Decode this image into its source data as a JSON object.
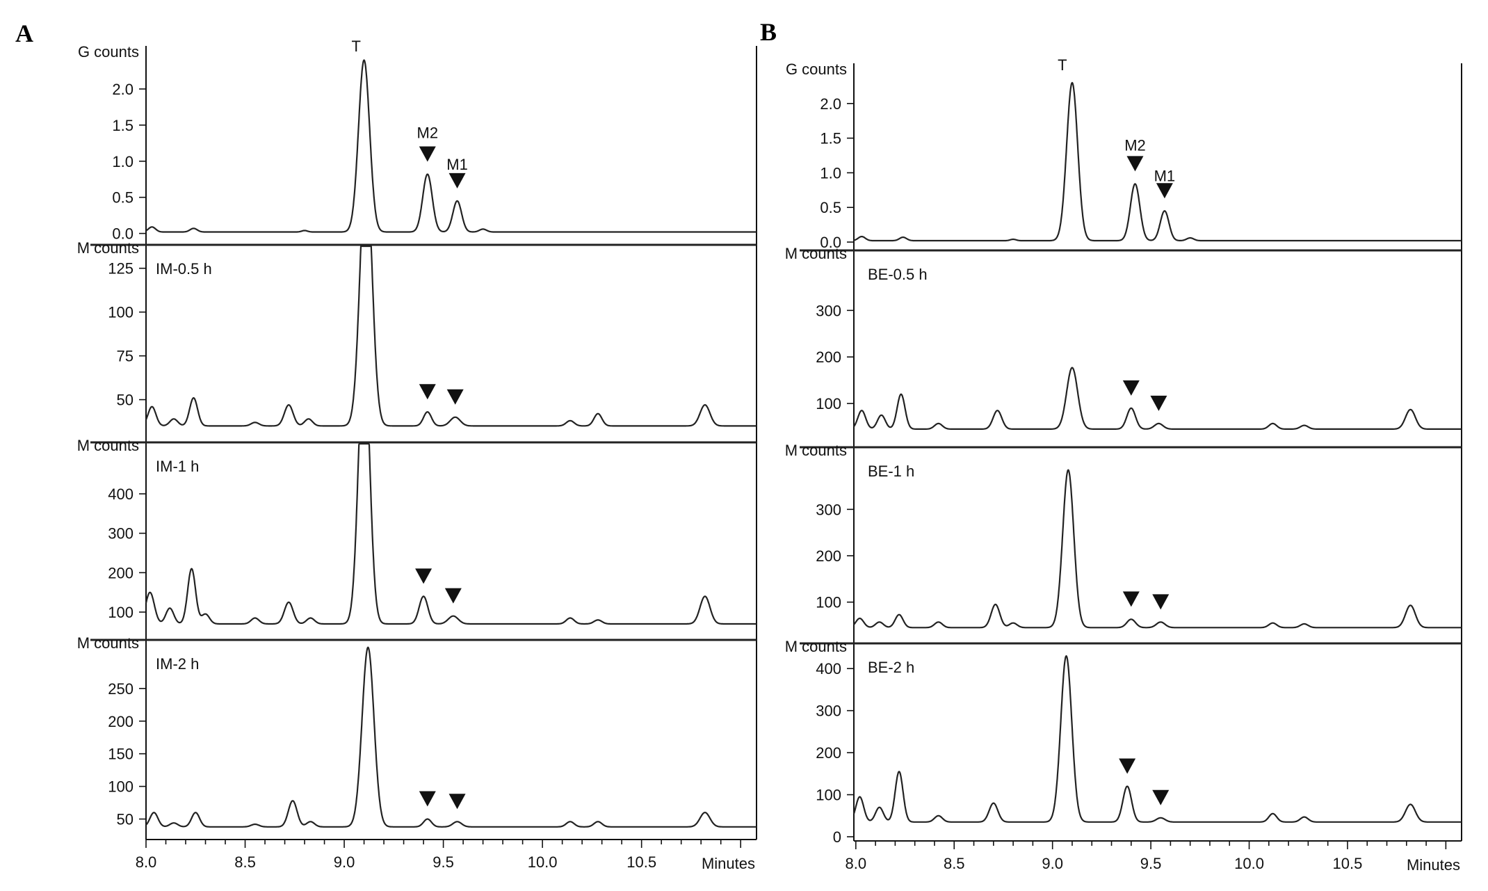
{
  "chart_data": [
    {
      "panel": "A",
      "type": "line",
      "xlabel": "Minutes",
      "xlim": [
        8.0,
        11.08
      ],
      "xticks": [
        8.0,
        8.5,
        9.0,
        9.5,
        10.0,
        10.5
      ],
      "xtick_labels": [
        "8.0",
        "8.5",
        "9.0",
        "9.5",
        "10.0",
        "10.5"
      ],
      "subplots": [
        {
          "ylabel": "G counts",
          "label": "",
          "ylim": [
            -0.1,
            2.5
          ],
          "yticks": [
            0.0,
            0.5,
            1.0,
            1.5,
            2.0
          ],
          "ytick_labels": [
            "0.0",
            "0.5",
            "1.0",
            "1.5",
            "2.0"
          ],
          "baseline": 0.02,
          "peaks": [
            [
              8.03,
              0.07,
              0.018
            ],
            [
              8.24,
              0.05,
              0.018
            ],
            [
              8.8,
              0.02,
              0.015
            ],
            [
              9.1,
              2.38,
              0.028
            ],
            [
              9.42,
              0.8,
              0.024
            ],
            [
              9.57,
              0.43,
              0.022
            ],
            [
              9.7,
              0.04,
              0.018
            ]
          ],
          "markers": [
            9.42,
            9.57
          ],
          "annotations": [
            {
              "text": "T",
              "x": 9.06,
              "y": 2.52
            },
            {
              "text": "M2",
              "x": 9.42,
              "y": 1.32
            },
            {
              "text": "M1",
              "x": 9.57,
              "y": 0.88
            }
          ]
        },
        {
          "ylabel": "M counts",
          "label": "IM-0.5 h",
          "ylim": [
            28,
            136
          ],
          "yticks": [
            50,
            75,
            100,
            125
          ],
          "ytick_labels": [
            "50",
            "75",
            "100",
            "125"
          ],
          "baseline": 35,
          "peaks": [
            [
              8.03,
              11,
              0.02
            ],
            [
              8.14,
              4,
              0.02
            ],
            [
              8.24,
              16,
              0.02
            ],
            [
              8.55,
              2,
              0.02
            ],
            [
              8.72,
              12,
              0.022
            ],
            [
              8.82,
              4,
              0.02
            ],
            [
              9.11,
              150,
              0.03
            ],
            [
              9.42,
              8,
              0.02
            ],
            [
              9.56,
              5,
              0.025
            ],
            [
              10.14,
              3,
              0.02
            ],
            [
              10.28,
              7,
              0.02
            ],
            [
              10.82,
              12,
              0.025
            ]
          ],
          "markers": [
            9.42,
            9.56
          ]
        },
        {
          "ylabel": "M counts",
          "label": "IM-1 h",
          "ylim": [
            40,
            520
          ],
          "yticks": [
            100,
            200,
            300,
            400
          ],
          "ytick_labels": [
            "100",
            "200",
            "300",
            "400"
          ],
          "baseline": 70,
          "peaks": [
            [
              8.02,
              80,
              0.022
            ],
            [
              8.12,
              40,
              0.02
            ],
            [
              8.23,
              140,
              0.02
            ],
            [
              8.3,
              25,
              0.02
            ],
            [
              8.55,
              15,
              0.02
            ],
            [
              8.72,
              55,
              0.022
            ],
            [
              8.83,
              15,
              0.02
            ],
            [
              9.1,
              700,
              0.028
            ],
            [
              9.4,
              70,
              0.022
            ],
            [
              9.55,
              20,
              0.025
            ],
            [
              10.14,
              15,
              0.02
            ],
            [
              10.28,
              10,
              0.02
            ],
            [
              10.82,
              70,
              0.025
            ]
          ],
          "markers": [
            9.4,
            9.55
          ]
        },
        {
          "ylabel": "M counts",
          "label": "IM-2 h",
          "ylim": [
            25,
            318
          ],
          "yticks": [
            50,
            100,
            150,
            200,
            250
          ],
          "ytick_labels": [
            "50",
            "100",
            "150",
            "200",
            "250"
          ],
          "baseline": 38,
          "peaks": [
            [
              8.04,
              22,
              0.02
            ],
            [
              8.14,
              6,
              0.02
            ],
            [
              8.25,
              22,
              0.02
            ],
            [
              8.55,
              4,
              0.02
            ],
            [
              8.74,
              40,
              0.022
            ],
            [
              8.83,
              8,
              0.02
            ],
            [
              9.12,
              275,
              0.03
            ],
            [
              9.42,
              12,
              0.02
            ],
            [
              9.57,
              8,
              0.022
            ],
            [
              10.14,
              8,
              0.02
            ],
            [
              10.28,
              8,
              0.02
            ],
            [
              10.82,
              22,
              0.025
            ]
          ],
          "markers": [
            9.42,
            9.57
          ]
        }
      ]
    },
    {
      "panel": "B",
      "type": "line",
      "xlabel": "Minutes",
      "xlim": [
        7.99,
        11.08
      ],
      "xticks": [
        8.0,
        8.5,
        9.0,
        9.5,
        10.0,
        10.5
      ],
      "xtick_labels": [
        "8.0",
        "8.5",
        "9.0",
        "9.5",
        "10.0",
        "10.5"
      ],
      "subplots": [
        {
          "ylabel": "G counts",
          "label": "",
          "ylim": [
            -0.06,
            2.48
          ],
          "yticks": [
            0.0,
            0.5,
            1.0,
            1.5,
            2.0
          ],
          "ytick_labels": [
            "0.0",
            "0.5",
            "1.0",
            "1.5",
            "2.0"
          ],
          "baseline": 0.02,
          "peaks": [
            [
              8.03,
              0.06,
              0.018
            ],
            [
              8.24,
              0.05,
              0.018
            ],
            [
              8.8,
              0.02,
              0.015
            ],
            [
              9.1,
              2.28,
              0.028
            ],
            [
              9.42,
              0.82,
              0.024
            ],
            [
              9.57,
              0.43,
              0.022
            ],
            [
              9.7,
              0.04,
              0.018
            ]
          ],
          "markers": [
            9.42,
            9.57
          ],
          "annotations": [
            {
              "text": "T",
              "x": 9.05,
              "y": 2.48
            },
            {
              "text": "M2",
              "x": 9.42,
              "y": 1.32
            },
            {
              "text": "M1",
              "x": 9.57,
              "y": 0.88
            }
          ]
        },
        {
          "ylabel": "M counts",
          "label": "BE-0.5 h",
          "ylim": [
            15,
            420
          ],
          "yticks": [
            100,
            200,
            300
          ],
          "ytick_labels": [
            "100",
            "200",
            "300"
          ],
          "baseline": 45,
          "peaks": [
            [
              8.03,
              40,
              0.02
            ],
            [
              8.13,
              30,
              0.02
            ],
            [
              8.23,
              75,
              0.02
            ],
            [
              8.42,
              12,
              0.02
            ],
            [
              8.72,
              40,
              0.022
            ],
            [
              9.1,
              132,
              0.028
            ],
            [
              9.4,
              45,
              0.022
            ],
            [
              9.54,
              12,
              0.022
            ],
            [
              10.12,
              12,
              0.02
            ],
            [
              10.28,
              8,
              0.02
            ],
            [
              10.82,
              42,
              0.025
            ]
          ],
          "markers": [
            9.4,
            9.54
          ]
        },
        {
          "ylabel": "M counts",
          "label": "BE-1 h",
          "ylim": [
            20,
            425
          ],
          "yticks": [
            100,
            200,
            300
          ],
          "ytick_labels": [
            "100",
            "200",
            "300"
          ],
          "baseline": 45,
          "peaks": [
            [
              8.02,
              20,
              0.02
            ],
            [
              8.12,
              12,
              0.02
            ],
            [
              8.22,
              28,
              0.02
            ],
            [
              8.42,
              12,
              0.02
            ],
            [
              8.71,
              50,
              0.022
            ],
            [
              8.8,
              10,
              0.02
            ],
            [
              9.08,
              340,
              0.028
            ],
            [
              9.4,
              18,
              0.022
            ],
            [
              9.55,
              12,
              0.022
            ],
            [
              10.12,
              10,
              0.02
            ],
            [
              10.28,
              8,
              0.02
            ],
            [
              10.82,
              48,
              0.025
            ]
          ],
          "markers": [
            9.4,
            9.55
          ]
        },
        {
          "ylabel": "M counts",
          "label": "BE-2 h",
          "ylim": [
            0,
            450
          ],
          "yticks": [
            0,
            100,
            200,
            300,
            400
          ],
          "ytick_labels": [
            "0",
            "100",
            "200",
            "300",
            "400"
          ],
          "baseline": 35,
          "peaks": [
            [
              8.02,
              60,
              0.02
            ],
            [
              8.12,
              35,
              0.02
            ],
            [
              8.22,
              120,
              0.02
            ],
            [
              8.42,
              15,
              0.02
            ],
            [
              8.7,
              45,
              0.022
            ],
            [
              9.07,
              395,
              0.028
            ],
            [
              9.38,
              85,
              0.022
            ],
            [
              9.55,
              10,
              0.022
            ],
            [
              10.12,
              20,
              0.02
            ],
            [
              10.28,
              12,
              0.02
            ],
            [
              10.82,
              42,
              0.025
            ]
          ],
          "markers": [
            9.38,
            9.55
          ]
        }
      ]
    }
  ]
}
